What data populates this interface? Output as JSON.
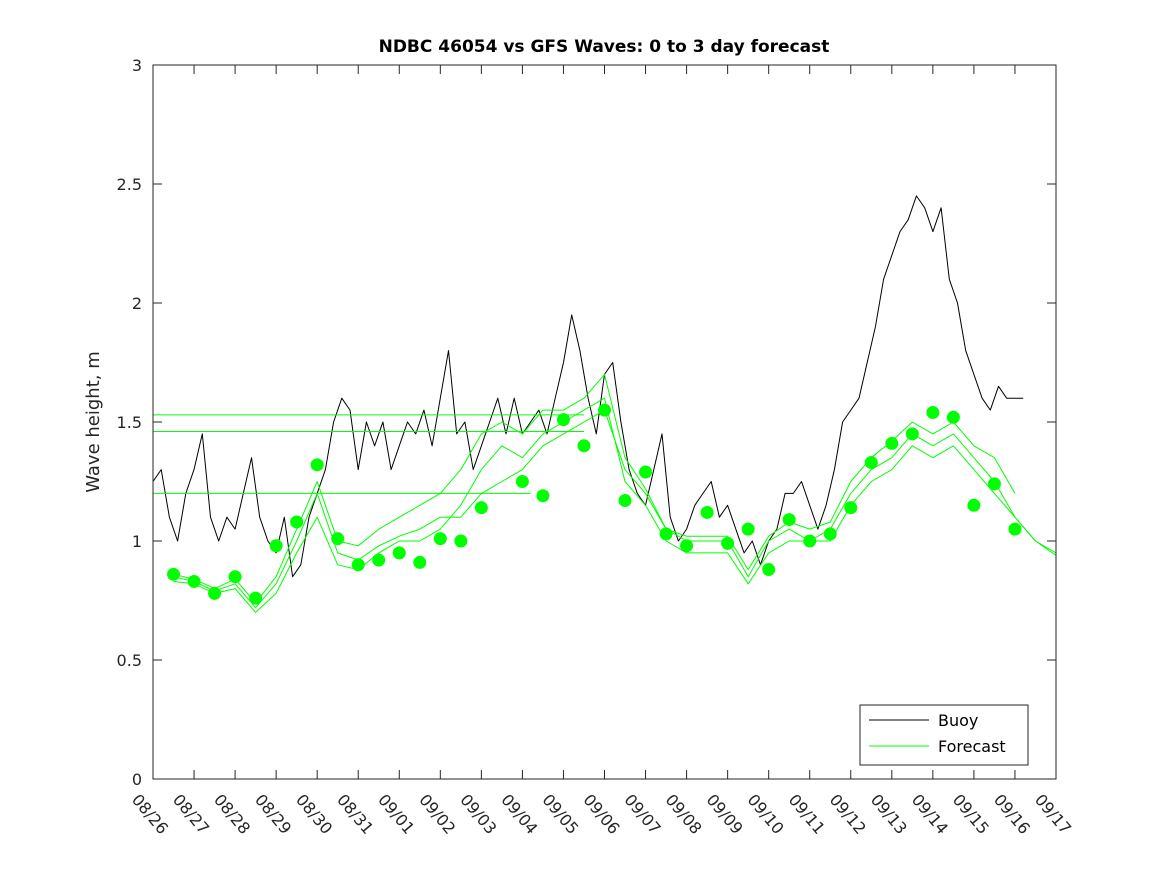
{
  "chart_data": {
    "type": "line",
    "title": "NDBC 46054 vs GFS Waves: 0 to 3 day forecast",
    "xlabel": "",
    "ylabel": "Wave height, m",
    "ylim": [
      0,
      3
    ],
    "xlim_days": [
      0,
      22
    ],
    "y_ticks": [
      "0",
      "0.5",
      "1",
      "1.5",
      "2",
      "2.5",
      "3"
    ],
    "x_ticks": [
      "08/26",
      "08/27",
      "08/28",
      "08/29",
      "08/30",
      "08/31",
      "09/01",
      "09/02",
      "09/03",
      "09/04",
      "09/05",
      "09/06",
      "09/07",
      "09/08",
      "09/09",
      "09/10",
      "09/11",
      "09/12",
      "09/13",
      "09/14",
      "09/15",
      "09/16",
      "09/17"
    ],
    "legend": {
      "position": "bottom-right",
      "entries": [
        "Buoy",
        "Forecast"
      ]
    },
    "colors": {
      "buoy": "#000000",
      "forecast": "#00ff00",
      "axes": "#262626"
    },
    "series": [
      {
        "name": "Buoy",
        "type": "line",
        "x": [
          0,
          0.2,
          0.4,
          0.6,
          0.8,
          1,
          1.2,
          1.4,
          1.6,
          1.8,
          2,
          2.2,
          2.4,
          2.6,
          2.8,
          3,
          3.2,
          3.4,
          3.6,
          3.8,
          4,
          4.2,
          4.4,
          4.6,
          4.8,
          5,
          5.2,
          5.4,
          5.6,
          5.8,
          6,
          6.2,
          6.4,
          6.6,
          6.8,
          7,
          7.2,
          7.4,
          7.6,
          7.8,
          8,
          8.2,
          8.4,
          8.6,
          8.8,
          9,
          9.2,
          9.4,
          9.6,
          9.8,
          10,
          10.2,
          10.4,
          10.6,
          10.8,
          11,
          11.2,
          11.4,
          11.6,
          11.8,
          12,
          12.2,
          12.4,
          12.6,
          12.8,
          13,
          13.2,
          13.4,
          13.6,
          13.8,
          14,
          14.2,
          14.4,
          14.6,
          14.8,
          15,
          15.2,
          15.4,
          15.6,
          15.8,
          16,
          16.2,
          16.4,
          16.6,
          16.8,
          17,
          17.2,
          17.4,
          17.6,
          17.8,
          18,
          18.2,
          18.4,
          18.6,
          18.8,
          19,
          19.2,
          19.4,
          19.6,
          19.8,
          20,
          20.2,
          20.4,
          20.6,
          20.8,
          21,
          21.2
        ],
        "y": [
          1.25,
          1.3,
          1.1,
          1.0,
          1.2,
          1.3,
          1.45,
          1.1,
          1.0,
          1.1,
          1.05,
          1.2,
          1.35,
          1.1,
          1.0,
          0.95,
          1.1,
          0.85,
          0.9,
          1.1,
          1.2,
          1.3,
          1.5,
          1.6,
          1.55,
          1.3,
          1.5,
          1.4,
          1.5,
          1.3,
          1.4,
          1.5,
          1.45,
          1.55,
          1.4,
          1.6,
          1.8,
          1.45,
          1.5,
          1.3,
          1.4,
          1.5,
          1.6,
          1.45,
          1.6,
          1.45,
          1.5,
          1.55,
          1.45,
          1.6,
          1.75,
          1.95,
          1.8,
          1.6,
          1.45,
          1.7,
          1.75,
          1.5,
          1.3,
          1.2,
          1.15,
          1.3,
          1.45,
          1.1,
          1.0,
          1.05,
          1.15,
          1.2,
          1.25,
          1.1,
          1.15,
          1.05,
          0.95,
          1.0,
          0.9,
          1.0,
          1.05,
          1.2,
          1.2,
          1.25,
          1.15,
          1.05,
          1.15,
          1.3,
          1.5,
          1.55,
          1.6,
          1.75,
          1.9,
          2.1,
          2.2,
          2.3,
          2.35,
          2.45,
          2.4,
          2.3,
          2.4,
          2.1,
          2.0,
          1.8,
          1.7,
          1.6,
          1.55,
          1.65,
          1.6,
          1.6,
          1.6
        ]
      },
      {
        "name": "Forecast",
        "type": "line",
        "x": [
          0.5,
          1,
          1.5,
          2,
          2.5,
          3,
          3.5,
          4,
          4.5,
          5,
          5.5,
          6,
          6.5,
          7,
          7.5,
          8,
          8.5,
          9,
          9.5,
          10,
          10.5,
          11,
          11.5,
          12,
          12.5,
          13,
          13.5,
          14,
          14.5,
          15,
          15.5,
          16,
          16.5,
          17,
          17.5,
          18,
          18.5,
          19,
          19.5,
          20,
          20.5,
          21,
          21.5,
          22
        ],
        "y": [
          0.85,
          0.83,
          0.79,
          0.82,
          0.72,
          0.82,
          1.0,
          1.2,
          0.95,
          0.92,
          0.98,
          1.02,
          1.05,
          1.1,
          1.1,
          1.2,
          1.25,
          1.3,
          1.4,
          1.45,
          1.5,
          1.55,
          1.3,
          1.2,
          1.05,
          1.0,
          1.0,
          1.0,
          0.85,
          1.0,
          1.05,
          1.0,
          1.05,
          1.2,
          1.3,
          1.35,
          1.45,
          1.4,
          1.45,
          1.35,
          1.25,
          1.1,
          1.0,
          0.95
        ]
      },
      {
        "name": "Forecast",
        "type": "line",
        "x": [
          0.5,
          1,
          1.5,
          2,
          2.5,
          3,
          3.5,
          4,
          4.5,
          5,
          5.5,
          6,
          6.5,
          7,
          7.5,
          8,
          8.5,
          9,
          9.5,
          10,
          10.5,
          11,
          11.5,
          12,
          12.5,
          13,
          13.5,
          14,
          14.5,
          15,
          15.5,
          16,
          16.5,
          17,
          17.5,
          18,
          18.5,
          19,
          19.5,
          20,
          20.5,
          21,
          21.5,
          22
        ],
        "y": [
          0.83,
          0.82,
          0.78,
          0.8,
          0.7,
          0.78,
          0.95,
          1.1,
          0.9,
          0.88,
          0.95,
          1.0,
          1.0,
          1.05,
          1.15,
          1.3,
          1.4,
          1.35,
          1.45,
          1.5,
          1.55,
          1.6,
          1.25,
          1.15,
          1.0,
          0.95,
          0.95,
          0.95,
          0.82,
          0.95,
          1.0,
          1.0,
          1.0,
          1.15,
          1.25,
          1.3,
          1.4,
          1.35,
          1.4,
          1.3,
          1.2,
          1.1,
          1.0,
          0.94
        ]
      },
      {
        "name": "Forecast",
        "type": "line",
        "x": [
          0.5,
          1,
          1.5,
          2,
          2.5,
          3,
          3.5,
          4,
          4.5,
          5,
          5.5,
          6,
          6.5,
          7,
          7.5,
          8,
          8.5,
          9,
          9.5,
          10,
          10.5,
          11,
          11.5,
          12,
          12.5,
          13,
          13.5,
          14,
          14.5,
          15,
          15.5,
          16,
          16.5,
          17,
          17.5,
          18,
          18.5,
          19,
          19.5,
          20,
          20.5,
          21
        ],
        "y": [
          0.86,
          0.84,
          0.8,
          0.84,
          0.74,
          0.85,
          1.05,
          1.25,
          1.0,
          0.98,
          1.05,
          1.1,
          1.15,
          1.2,
          1.3,
          1.45,
          1.5,
          1.45,
          1.55,
          1.55,
          1.6,
          1.7,
          1.35,
          1.22,
          1.05,
          1.02,
          1.02,
          1.02,
          0.88,
          1.02,
          1.08,
          1.05,
          1.08,
          1.25,
          1.35,
          1.42,
          1.5,
          1.45,
          1.5,
          1.4,
          1.35,
          1.2
        ]
      },
      {
        "name": "Forecast",
        "type": "hline",
        "x": [
          0,
          9.2
        ],
        "y": [
          1.2,
          1.2
        ]
      },
      {
        "name": "Forecast",
        "type": "hline",
        "x": [
          0,
          10.5
        ],
        "y": [
          1.46,
          1.46
        ]
      },
      {
        "name": "Forecast",
        "type": "hline",
        "x": [
          0,
          10.5
        ],
        "y": [
          1.53,
          1.53
        ]
      },
      {
        "name": "Forecast",
        "type": "scatter",
        "x": [
          0.5,
          1,
          1.5,
          2,
          2.5,
          3,
          3.5,
          4,
          4.5,
          5,
          5.5,
          6,
          6.5,
          7,
          7.5,
          8,
          9,
          9.5,
          10,
          10.5,
          11,
          11.5,
          12,
          12.5,
          13,
          13.5,
          14,
          14.5,
          15,
          15.5,
          16,
          16.5,
          17,
          17.5,
          18,
          18.5,
          19,
          19.5,
          20,
          20.5,
          21
        ],
        "y": [
          0.86,
          0.83,
          0.78,
          0.85,
          0.76,
          0.98,
          1.08,
          1.32,
          1.01,
          0.9,
          0.92,
          0.95,
          0.91,
          1.01,
          1.0,
          1.14,
          1.25,
          1.19,
          1.51,
          1.4,
          1.55,
          1.17,
          1.29,
          1.03,
          0.98,
          1.12,
          0.99,
          1.05,
          0.88,
          1.09,
          1.0,
          1.03,
          1.14,
          1.33,
          1.41,
          1.45,
          1.54,
          1.52,
          1.15,
          1.24,
          1.05
        ]
      }
    ]
  }
}
